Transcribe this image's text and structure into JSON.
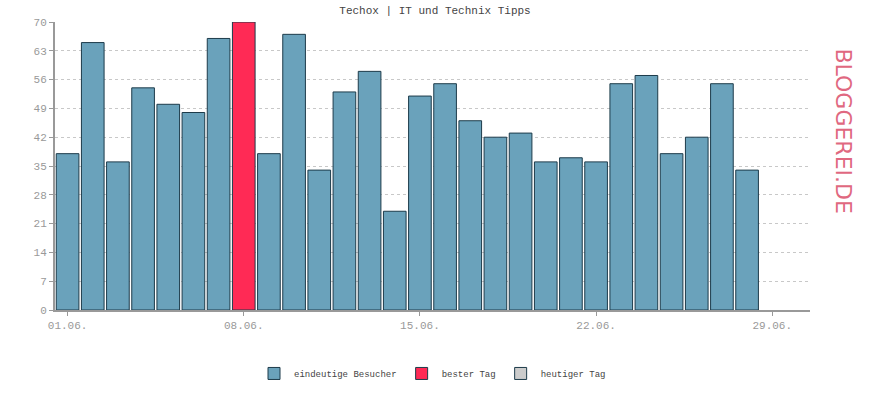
{
  "chart_data": {
    "type": "bar",
    "title": "Techox | IT und Technix Tipps",
    "categories": [
      "01.06.",
      null,
      null,
      null,
      null,
      null,
      null,
      "08.06.",
      null,
      null,
      null,
      null,
      null,
      null,
      "15.06.",
      null,
      null,
      null,
      null,
      null,
      null,
      "22.06.",
      null,
      null,
      null,
      null,
      null,
      null,
      "29.06.",
      null
    ],
    "series": [
      {
        "name": "eindeutige Besucher",
        "color": "#6aa2bb",
        "values": [
          38,
          65,
          36,
          54,
          50,
          48,
          66,
          null,
          38,
          67,
          34,
          53,
          58,
          24,
          52,
          55,
          46,
          42,
          43,
          36,
          37,
          36,
          55,
          57,
          38,
          42,
          55,
          34,
          null,
          null
        ]
      },
      {
        "name": "bester Tag",
        "color": "#ff2a55",
        "values": [
          null,
          null,
          null,
          null,
          null,
          null,
          null,
          70,
          null,
          null,
          null,
          null,
          null,
          null,
          null,
          null,
          null,
          null,
          null,
          null,
          null,
          null,
          null,
          null,
          null,
          null,
          null,
          null,
          null,
          null
        ]
      },
      {
        "name": "heutiger Tag",
        "color": "#cccccc",
        "values": [
          null,
          null,
          null,
          null,
          null,
          null,
          null,
          null,
          null,
          null,
          null,
          null,
          null,
          null,
          null,
          null,
          null,
          null,
          null,
          null,
          null,
          null,
          null,
          null,
          null,
          null,
          null,
          null,
          null,
          null
        ]
      }
    ],
    "stacked": true,
    "ylim": [
      0,
      70
    ],
    "yticks": [
      0,
      7,
      14,
      21,
      28,
      35,
      42,
      49,
      56,
      63,
      70
    ],
    "grid": true,
    "legend": "bottom",
    "annotations": [
      {
        "text": "BLOGGEREI.DE"
      }
    ]
  }
}
